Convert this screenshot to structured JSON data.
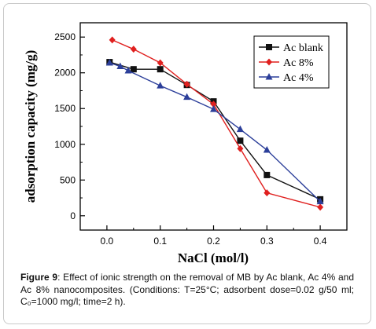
{
  "chart_data": {
    "type": "line",
    "xlabel": "NaCl (mol/l)",
    "ylabel": "adsorption capacity (mg/g)",
    "xlim": [
      -0.05,
      0.45
    ],
    "ylim": [
      -200,
      2700
    ],
    "xticks": [
      "0.0",
      "0.1",
      "0.2",
      "0.3",
      "0.4"
    ],
    "yticks": [
      "0",
      "500",
      "1000",
      "1500",
      "2000",
      "2500"
    ],
    "legend_position": "top-right",
    "grid": false,
    "series": [
      {
        "name": "Ac blank",
        "color": "#111111",
        "marker": "square",
        "x": [
          0.005,
          0.05,
          0.1,
          0.15,
          0.2,
          0.25,
          0.3,
          0.4
        ],
        "y": [
          2150,
          2050,
          2050,
          1830,
          1600,
          1050,
          570,
          230
        ]
      },
      {
        "name": "Ac 8%",
        "color": "#e0201f",
        "marker": "diamond",
        "x": [
          0.01,
          0.05,
          0.1,
          0.15,
          0.2,
          0.25,
          0.3,
          0.4
        ],
        "y": [
          2460,
          2330,
          2140,
          1840,
          1560,
          940,
          320,
          120
        ]
      },
      {
        "name": "Ac 4%",
        "color": "#2c3f9a",
        "marker": "triangle",
        "x": [
          0.005,
          0.025,
          0.04,
          0.1,
          0.15,
          0.2,
          0.25,
          0.3,
          0.4
        ],
        "y": [
          2140,
          2090,
          2030,
          1820,
          1660,
          1490,
          1210,
          920,
          200
        ]
      }
    ]
  },
  "caption": {
    "figure_label": "Figure 9",
    "text": ": Effect of ionic strength on the removal of MB by Ac blank, Ac 4% and Ac 8% nanocomposites. (Conditions: T=25°C; adsorbent dose=0.02 g/50 ml; C₀=1000 mg/l; time=2 h)."
  }
}
